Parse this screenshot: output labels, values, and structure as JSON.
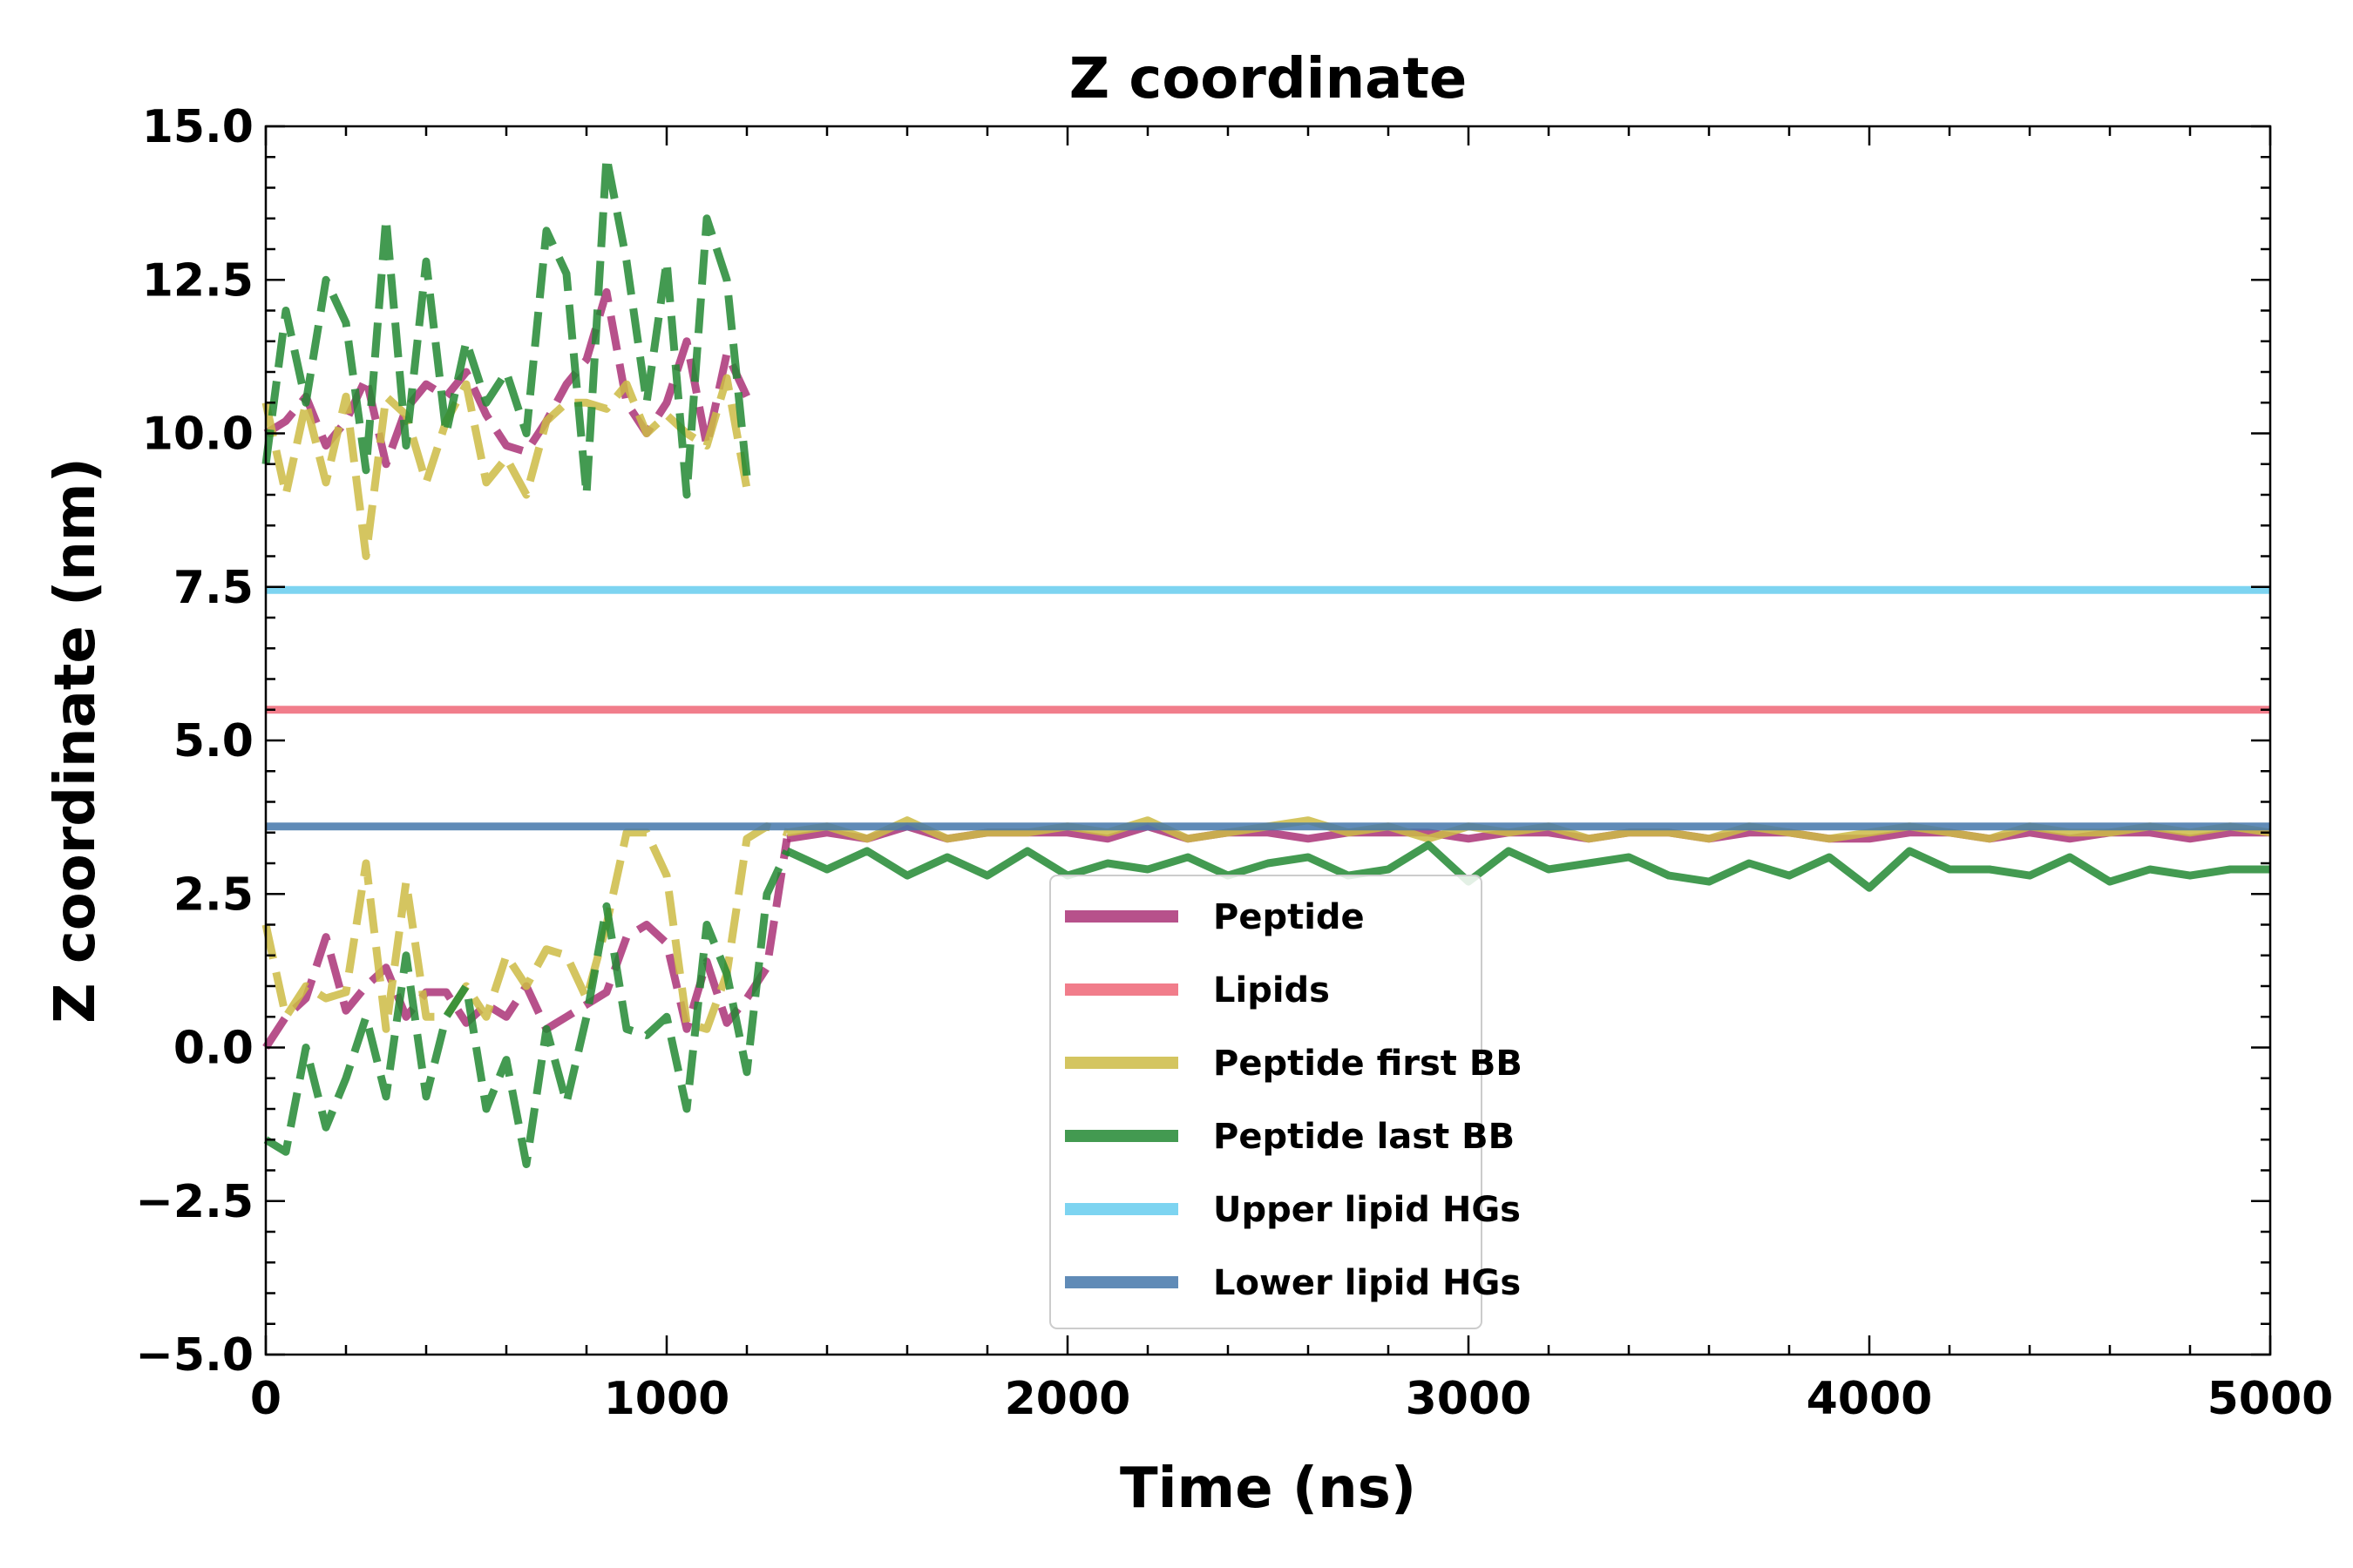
{
  "chart_data": {
    "type": "line",
    "title": "Z coordinate",
    "xlabel": "Time (ns)",
    "ylabel": "Z coordinate (nm)",
    "xlim": [
      0,
      5000
    ],
    "ylim": [
      -5.0,
      15.0
    ],
    "xticks": [
      0,
      1000,
      2000,
      3000,
      4000,
      5000
    ],
    "xtick_labels": [
      "0",
      "1000",
      "2000",
      "3000",
      "4000",
      "5000"
    ],
    "yticks": [
      -5.0,
      -2.5,
      0.0,
      2.5,
      5.0,
      7.5,
      10.0,
      12.5,
      15.0
    ],
    "ytick_labels": [
      "−5.0",
      "−2.5",
      "0.0",
      "2.5",
      "5.0",
      "7.5",
      "10.0",
      "12.5",
      "15.0"
    ],
    "grid": false,
    "legend_position": "lower-center",
    "series": [
      {
        "name": "Peptide",
        "color": "#aa3377",
        "x": [
          0,
          50,
          100,
          150,
          200,
          250,
          300,
          350,
          400,
          450,
          500,
          550,
          600,
          650,
          700,
          750,
          800,
          850,
          900,
          950,
          1000,
          1050,
          1100,
          1150,
          1200,
          1250,
          1300,
          1400,
          1500,
          1600,
          1700,
          1800,
          1900,
          2000,
          2100,
          2200,
          2300,
          2400,
          2500,
          2600,
          2700,
          2800,
          2900,
          3000,
          3100,
          3200,
          3300,
          3400,
          3500,
          3600,
          3700,
          3800,
          3900,
          4000,
          4100,
          4200,
          4300,
          4400,
          4500,
          4600,
          4700,
          4800,
          4900,
          5000
        ],
        "y": [
          0.0,
          0.5,
          0.8,
          1.8,
          0.6,
          1.0,
          1.3,
          0.5,
          0.9,
          0.9,
          0.4,
          0.7,
          0.5,
          1.0,
          0.3,
          0.5,
          0.7,
          0.9,
          1.8,
          2.0,
          1.7,
          0.3,
          1.4,
          0.4,
          0.8,
          1.3,
          3.4,
          3.5,
          3.4,
          3.6,
          3.4,
          3.5,
          3.5,
          3.5,
          3.4,
          3.6,
          3.4,
          3.5,
          3.5,
          3.4,
          3.5,
          3.5,
          3.5,
          3.4,
          3.5,
          3.5,
          3.4,
          3.5,
          3.5,
          3.4,
          3.5,
          3.5,
          3.4,
          3.4,
          3.5,
          3.5,
          3.4,
          3.5,
          3.4,
          3.5,
          3.5,
          3.4,
          3.5,
          3.5
        ]
      },
      {
        "name": "Lipids",
        "color": "#ee6677",
        "x": [
          0,
          5000
        ],
        "y": [
          5.5,
          5.5
        ]
      },
      {
        "name": "Peptide first BB",
        "color": "#ccbb44",
        "x": [
          0,
          50,
          100,
          150,
          200,
          250,
          300,
          350,
          400,
          450,
          500,
          550,
          600,
          650,
          700,
          750,
          800,
          850,
          900,
          950,
          1000,
          1050,
          1100,
          1150,
          1200,
          1250,
          1300,
          1400,
          1500,
          1600,
          1700,
          1800,
          1900,
          2000,
          2100,
          2200,
          2300,
          2400,
          2500,
          2600,
          2700,
          2800,
          2900,
          3000,
          3100,
          3200,
          3300,
          3400,
          3500,
          3600,
          3700,
          3800,
          3900,
          4000,
          4100,
          4200,
          4300,
          4400,
          4500,
          4600,
          4700,
          4800,
          4900,
          5000
        ],
        "y": [
          2.0,
          0.5,
          1.0,
          0.8,
          0.9,
          3.0,
          0.3,
          2.7,
          0.5,
          0.5,
          1.0,
          0.5,
          1.5,
          1.0,
          1.6,
          1.5,
          0.8,
          2.0,
          3.5,
          3.5,
          2.8,
          0.4,
          0.3,
          1.2,
          3.4,
          3.6,
          3.5,
          3.6,
          3.4,
          3.7,
          3.4,
          3.5,
          3.5,
          3.6,
          3.5,
          3.7,
          3.4,
          3.5,
          3.6,
          3.7,
          3.5,
          3.6,
          3.4,
          3.6,
          3.5,
          3.6,
          3.4,
          3.5,
          3.5,
          3.4,
          3.6,
          3.5,
          3.4,
          3.5,
          3.6,
          3.5,
          3.4,
          3.6,
          3.5,
          3.5,
          3.6,
          3.5,
          3.6,
          3.5
        ]
      },
      {
        "name": "Peptide last BB",
        "color": "#228833",
        "x": [
          0,
          50,
          100,
          150,
          200,
          250,
          300,
          350,
          400,
          450,
          500,
          550,
          600,
          650,
          700,
          750,
          800,
          850,
          900,
          950,
          1000,
          1050,
          1100,
          1150,
          1200,
          1250,
          1300,
          1400,
          1500,
          1600,
          1700,
          1800,
          1900,
          2000,
          2100,
          2200,
          2300,
          2400,
          2500,
          2600,
          2700,
          2800,
          2900,
          3000,
          3100,
          3200,
          3300,
          3400,
          3500,
          3600,
          3700,
          3800,
          3900,
          4000,
          4100,
          4200,
          4300,
          4400,
          4500,
          4600,
          4700,
          4800,
          4900,
          5000
        ],
        "y": [
          -1.5,
          -1.7,
          0.0,
          -1.3,
          -0.5,
          0.5,
          -0.8,
          1.5,
          -0.8,
          0.5,
          1.0,
          -1.0,
          -0.2,
          -1.9,
          0.3,
          -0.9,
          0.5,
          2.3,
          0.3,
          0.2,
          0.5,
          -1.0,
          2.0,
          1.2,
          -0.4,
          2.5,
          3.2,
          2.9,
          3.2,
          2.8,
          3.1,
          2.8,
          3.2,
          2.8,
          3.0,
          2.9,
          3.1,
          2.8,
          3.0,
          3.1,
          2.8,
          2.9,
          3.3,
          2.7,
          3.2,
          2.9,
          3.0,
          3.1,
          2.8,
          2.7,
          3.0,
          2.8,
          3.1,
          2.6,
          3.2,
          2.9,
          2.9,
          2.8,
          3.1,
          2.7,
          2.9,
          2.8,
          2.9,
          2.9
        ]
      },
      {
        "name": "Upper lipid HGs",
        "color": "#66ccee",
        "x": [
          0,
          5000
        ],
        "y": [
          7.45,
          7.45
        ]
      },
      {
        "name": "Lower lipid HGs",
        "color": "#4477aa",
        "x": [
          0,
          5000
        ],
        "y": [
          3.6,
          3.6
        ]
      }
    ],
    "upper_segments": [
      {
        "name": "Peptide",
        "color": "#aa3377",
        "x": [
          0,
          50,
          100,
          150,
          200,
          250,
          300,
          350,
          400,
          450,
          500,
          550,
          600,
          650,
          700,
          750,
          800,
          850,
          900,
          950,
          1000,
          1050,
          1100,
          1150,
          1200
        ],
        "y": [
          10.0,
          10.2,
          10.6,
          9.8,
          10.2,
          10.9,
          9.5,
          10.4,
          10.8,
          10.6,
          11.0,
          10.3,
          9.8,
          9.7,
          10.2,
          10.8,
          11.2,
          12.3,
          10.5,
          10.0,
          10.5,
          11.5,
          9.8,
          11.3,
          10.6
        ]
      },
      {
        "name": "Peptide first BB",
        "color": "#ccbb44",
        "x": [
          0,
          50,
          100,
          150,
          200,
          250,
          300,
          350,
          400,
          450,
          500,
          550,
          600,
          650,
          700,
          750,
          800,
          850,
          900,
          950,
          1000,
          1050,
          1100,
          1150,
          1200
        ],
        "y": [
          10.5,
          9.0,
          10.5,
          9.2,
          10.6,
          8.0,
          10.6,
          10.3,
          9.2,
          10.2,
          10.8,
          9.2,
          9.6,
          9.0,
          10.2,
          10.5,
          10.5,
          10.4,
          10.8,
          10.0,
          10.3,
          10.0,
          9.8,
          10.9,
          9.1
        ]
      },
      {
        "name": "Peptide last BB",
        "color": "#228833",
        "x": [
          0,
          50,
          100,
          150,
          200,
          250,
          300,
          350,
          400,
          450,
          500,
          550,
          600,
          650,
          700,
          750,
          800,
          850,
          900,
          950,
          1000,
          1050,
          1100,
          1150,
          1200
        ],
        "y": [
          9.5,
          12.0,
          10.5,
          12.5,
          11.8,
          9.4,
          13.5,
          9.8,
          12.8,
          10.0,
          11.5,
          10.5,
          11.0,
          10.0,
          13.3,
          12.6,
          9.0,
          14.5,
          12.8,
          10.5,
          12.8,
          9.0,
          13.5,
          12.5,
          9.3
        ]
      }
    ],
    "legend": [
      "Peptide",
      "Lipids",
      "Peptide first BB",
      "Peptide last BB",
      "Upper lipid HGs",
      "Lower lipid HGs"
    ]
  }
}
